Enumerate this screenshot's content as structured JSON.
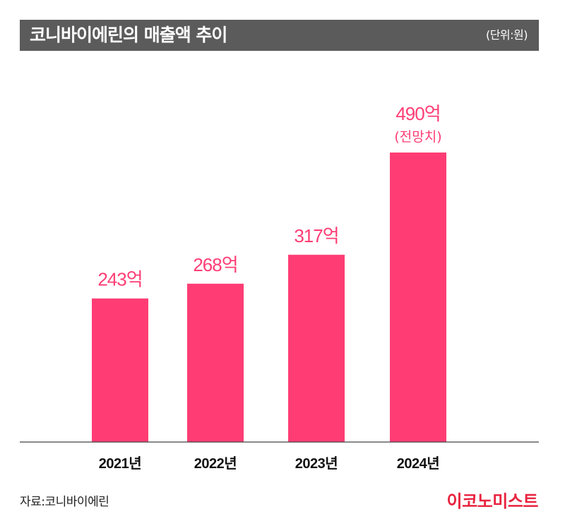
{
  "header": {
    "title": "코니바이에린의 매출액 추이",
    "unit": "(단위:원)"
  },
  "footer": {
    "source": "자료:코니바이에린",
    "brand": "이코노미스트"
  },
  "colors": {
    "bar": "#ff3d74",
    "label": "#ff3d74",
    "title_bg": "#5b5b5b",
    "brand": "#e8233e"
  },
  "chart_data": {
    "type": "bar",
    "title": "코니바이에린의 매출액 추이",
    "unit": "(단위:원)",
    "categories": [
      "2021년",
      "2022년",
      "2023년",
      "2024년"
    ],
    "values": [
      243,
      268,
      317,
      490
    ],
    "data_labels": [
      "243억",
      "268억",
      "317억",
      "490억"
    ],
    "annotations": [
      "",
      "",
      "",
      "(전망치)"
    ],
    "xlabel": "",
    "ylabel": "",
    "grid": false
  }
}
